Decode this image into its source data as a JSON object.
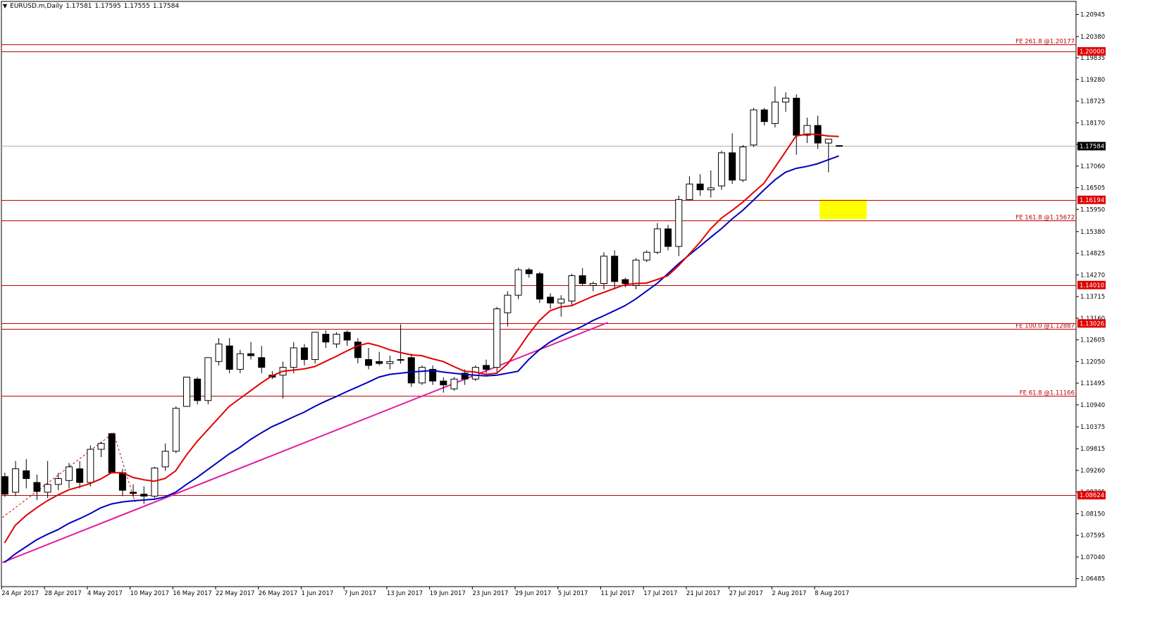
{
  "header": {
    "symbol": "EURUSD.m,Daily",
    "open": "1.17581",
    "high": "1.17595",
    "low": "1.17555",
    "close": "1.17584"
  },
  "colors": {
    "background": "#ffffff",
    "border": "#000000",
    "bull_body": "#ffffff",
    "bear_body": "#000000",
    "ma_fast": "#e00000",
    "ma_slow": "#0000c0",
    "trendline": "#e020a0",
    "level_line": "#c00000",
    "price_label_bg": "#e00000",
    "current_price_line": "#b0b0b0",
    "highlight_box": "#ffff00"
  },
  "chart_data": {
    "type": "candlestick",
    "title": "EURUSD.m,Daily",
    "ylim": [
      1.0628,
      1.2128
    ],
    "y_ticks": [
      "1.20945",
      "1.20380",
      "1.19835",
      "1.19280",
      "1.18725",
      "1.18170",
      "1.17615",
      "1.17060",
      "1.16505",
      "1.15950",
      "1.15380",
      "1.14825",
      "1.14270",
      "1.13715",
      "1.13160",
      "1.12605",
      "1.12050",
      "1.11495",
      "1.10940",
      "1.10375",
      "1.09815",
      "1.09260",
      "1.08705",
      "1.08150",
      "1.07595",
      "1.07040",
      "1.06485"
    ],
    "x_labels": [
      {
        "index": 0,
        "text": "24 Apr 2017"
      },
      {
        "index": 4,
        "text": "28 Apr 2017"
      },
      {
        "index": 8,
        "text": "4 May 2017"
      },
      {
        "index": 12,
        "text": "10 May 2017"
      },
      {
        "index": 16,
        "text": "16 May 2017"
      },
      {
        "index": 20,
        "text": "22 May 2017"
      },
      {
        "index": 24,
        "text": "26 May 2017"
      },
      {
        "index": 28,
        "text": "1 Jun 2017"
      },
      {
        "index": 32,
        "text": "7 Jun 2017"
      },
      {
        "index": 36,
        "text": "13 Jun 2017"
      },
      {
        "index": 40,
        "text": "19 Jun 2017"
      },
      {
        "index": 44,
        "text": "23 Jun 2017"
      },
      {
        "index": 48,
        "text": "29 Jun 2017"
      },
      {
        "index": 52,
        "text": "5 Jul 2017"
      },
      {
        "index": 56,
        "text": "11 Jul 2017"
      },
      {
        "index": 60,
        "text": "17 Jul 2017"
      },
      {
        "index": 64,
        "text": "21 Jul 2017"
      },
      {
        "index": 68,
        "text": "27 Jul 2017"
      },
      {
        "index": 72,
        "text": "2 Aug 2017"
      },
      {
        "index": 76,
        "text": "8 Aug 2017"
      }
    ],
    "candles": [
      {
        "o": 1.091,
        "h": 1.092,
        "l": 1.0858,
        "c": 1.0865
      },
      {
        "o": 1.087,
        "h": 1.095,
        "l": 1.086,
        "c": 1.093
      },
      {
        "o": 1.0925,
        "h": 1.0955,
        "l": 1.088,
        "c": 1.0905
      },
      {
        "o": 1.0895,
        "h": 1.0915,
        "l": 1.085,
        "c": 1.0872
      },
      {
        "o": 1.087,
        "h": 1.095,
        "l": 1.0855,
        "c": 1.089
      },
      {
        "o": 1.089,
        "h": 1.092,
        "l": 1.0875,
        "c": 1.0905
      },
      {
        "o": 1.09,
        "h": 1.0945,
        "l": 1.088,
        "c": 1.0935
      },
      {
        "o": 1.093,
        "h": 1.095,
        "l": 1.088,
        "c": 1.0895
      },
      {
        "o": 1.0895,
        "h": 1.099,
        "l": 1.0885,
        "c": 1.098
      },
      {
        "o": 1.098,
        "h": 1.1,
        "l": 1.096,
        "c": 1.0995
      },
      {
        "o": 1.102,
        "h": 1.1022,
        "l": 1.0918,
        "c": 1.092
      },
      {
        "o": 1.092,
        "h": 1.093,
        "l": 1.086,
        "c": 1.0875
      },
      {
        "o": 1.087,
        "h": 1.089,
        "l": 1.0858,
        "c": 1.0867
      },
      {
        "o": 1.0865,
        "h": 1.0885,
        "l": 1.084,
        "c": 1.086
      },
      {
        "o": 1.086,
        "h": 1.0935,
        "l": 1.0855,
        "c": 1.0932
      },
      {
        "o": 1.0935,
        "h": 1.0995,
        "l": 1.0925,
        "c": 1.0975
      },
      {
        "o": 1.0975,
        "h": 1.109,
        "l": 1.097,
        "c": 1.1085
      },
      {
        "o": 1.109,
        "h": 1.1165,
        "l": 1.109,
        "c": 1.1165
      },
      {
        "o": 1.116,
        "h": 1.1165,
        "l": 1.1095,
        "c": 1.1105
      },
      {
        "o": 1.1105,
        "h": 1.1215,
        "l": 1.1095,
        "c": 1.1215
      },
      {
        "o": 1.1205,
        "h": 1.1265,
        "l": 1.1195,
        "c": 1.125
      },
      {
        "o": 1.1245,
        "h": 1.1265,
        "l": 1.1175,
        "c": 1.1185
      },
      {
        "o": 1.1185,
        "h": 1.1235,
        "l": 1.1175,
        "c": 1.1225
      },
      {
        "o": 1.1225,
        "h": 1.1255,
        "l": 1.121,
        "c": 1.122
      },
      {
        "o": 1.1215,
        "h": 1.1245,
        "l": 1.1175,
        "c": 1.119
      },
      {
        "o": 1.117,
        "h": 1.118,
        "l": 1.116,
        "c": 1.1165
      },
      {
        "o": 1.117,
        "h": 1.1205,
        "l": 1.111,
        "c": 1.119
      },
      {
        "o": 1.119,
        "h": 1.1255,
        "l": 1.1175,
        "c": 1.124
      },
      {
        "o": 1.124,
        "h": 1.125,
        "l": 1.1195,
        "c": 1.121
      },
      {
        "o": 1.121,
        "h": 1.128,
        "l": 1.12,
        "c": 1.128
      },
      {
        "o": 1.1275,
        "h": 1.1285,
        "l": 1.124,
        "c": 1.1255
      },
      {
        "o": 1.125,
        "h": 1.128,
        "l": 1.124,
        "c": 1.1275
      },
      {
        "o": 1.128,
        "h": 1.1285,
        "l": 1.1245,
        "c": 1.126
      },
      {
        "o": 1.1255,
        "h": 1.1265,
        "l": 1.12,
        "c": 1.1215
      },
      {
        "o": 1.121,
        "h": 1.124,
        "l": 1.1185,
        "c": 1.1195
      },
      {
        "o": 1.1205,
        "h": 1.123,
        "l": 1.1195,
        "c": 1.12
      },
      {
        "o": 1.12,
        "h": 1.122,
        "l": 1.1185,
        "c": 1.1205
      },
      {
        "o": 1.121,
        "h": 1.13,
        "l": 1.12,
        "c": 1.121
      },
      {
        "o": 1.1215,
        "h": 1.1225,
        "l": 1.114,
        "c": 1.115
      },
      {
        "o": 1.115,
        "h": 1.1195,
        "l": 1.1145,
        "c": 1.119
      },
      {
        "o": 1.1185,
        "h": 1.1195,
        "l": 1.1145,
        "c": 1.1155
      },
      {
        "o": 1.1155,
        "h": 1.1165,
        "l": 1.1125,
        "c": 1.1145
      },
      {
        "o": 1.1135,
        "h": 1.1165,
        "l": 1.113,
        "c": 1.116
      },
      {
        "o": 1.1175,
        "h": 1.1185,
        "l": 1.1145,
        "c": 1.116
      },
      {
        "o": 1.116,
        "h": 1.1195,
        "l": 1.1155,
        "c": 1.119
      },
      {
        "o": 1.1195,
        "h": 1.121,
        "l": 1.1175,
        "c": 1.1185
      },
      {
        "o": 1.119,
        "h": 1.1345,
        "l": 1.1175,
        "c": 1.134
      },
      {
        "o": 1.133,
        "h": 1.1385,
        "l": 1.1295,
        "c": 1.1375
      },
      {
        "o": 1.1375,
        "h": 1.1445,
        "l": 1.1365,
        "c": 1.144
      },
      {
        "o": 1.144,
        "h": 1.1445,
        "l": 1.142,
        "c": 1.143
      },
      {
        "o": 1.143,
        "h": 1.1435,
        "l": 1.1355,
        "c": 1.1365
      },
      {
        "o": 1.137,
        "h": 1.138,
        "l": 1.134,
        "c": 1.1355
      },
      {
        "o": 1.1355,
        "h": 1.1375,
        "l": 1.132,
        "c": 1.1365
      },
      {
        "o": 1.136,
        "h": 1.143,
        "l": 1.135,
        "c": 1.1425
      },
      {
        "o": 1.1425,
        "h": 1.1445,
        "l": 1.14,
        "c": 1.1405
      },
      {
        "o": 1.14,
        "h": 1.141,
        "l": 1.1385,
        "c": 1.1405
      },
      {
        "o": 1.1405,
        "h": 1.1485,
        "l": 1.139,
        "c": 1.1475
      },
      {
        "o": 1.1475,
        "h": 1.149,
        "l": 1.139,
        "c": 1.141
      },
      {
        "o": 1.1415,
        "h": 1.142,
        "l": 1.1395,
        "c": 1.1405
      },
      {
        "o": 1.14,
        "h": 1.147,
        "l": 1.139,
        "c": 1.1465
      },
      {
        "o": 1.1465,
        "h": 1.149,
        "l": 1.146,
        "c": 1.1485
      },
      {
        "o": 1.1485,
        "h": 1.156,
        "l": 1.148,
        "c": 1.1545
      },
      {
        "o": 1.1545,
        "h": 1.1555,
        "l": 1.149,
        "c": 1.15
      },
      {
        "o": 1.15,
        "h": 1.163,
        "l": 1.1475,
        "c": 1.162
      },
      {
        "o": 1.162,
        "h": 1.168,
        "l": 1.162,
        "c": 1.166
      },
      {
        "o": 1.166,
        "h": 1.1685,
        "l": 1.163,
        "c": 1.1645
      },
      {
        "o": 1.1645,
        "h": 1.1695,
        "l": 1.1625,
        "c": 1.165
      },
      {
        "o": 1.1655,
        "h": 1.1745,
        "l": 1.1645,
        "c": 1.174
      },
      {
        "o": 1.174,
        "h": 1.179,
        "l": 1.166,
        "c": 1.167
      },
      {
        "o": 1.167,
        "h": 1.176,
        "l": 1.1665,
        "c": 1.1755
      },
      {
        "o": 1.176,
        "h": 1.1855,
        "l": 1.1755,
        "c": 1.185
      },
      {
        "o": 1.185,
        "h": 1.1855,
        "l": 1.181,
        "c": 1.182
      },
      {
        "o": 1.1815,
        "h": 1.191,
        "l": 1.1805,
        "c": 1.187
      },
      {
        "o": 1.187,
        "h": 1.1895,
        "l": 1.1845,
        "c": 1.188
      },
      {
        "o": 1.188,
        "h": 1.189,
        "l": 1.1735,
        "c": 1.1785
      },
      {
        "o": 1.1785,
        "h": 1.183,
        "l": 1.1765,
        "c": 1.181
      },
      {
        "o": 1.181,
        "h": 1.1835,
        "l": 1.175,
        "c": 1.1765
      },
      {
        "o": 1.1765,
        "h": 1.1775,
        "l": 1.169,
        "c": 1.1775
      },
      {
        "o": 1.17581,
        "h": 1.17595,
        "l": 1.17555,
        "c": 1.17584
      }
    ],
    "ma_fast": [
      1.074,
      1.0785,
      1.081,
      1.083,
      1.0848,
      1.0863,
      1.0876,
      1.0884,
      1.0892,
      1.0904,
      1.092,
      1.092,
      1.0908,
      1.0902,
      1.0898,
      1.0905,
      1.0925,
      1.0965,
      1.1,
      1.103,
      1.106,
      1.109,
      1.111,
      1.113,
      1.115,
      1.1168,
      1.118,
      1.1183,
      1.1186,
      1.1192,
      1.1205,
      1.1218,
      1.1232,
      1.1245,
      1.1252,
      1.1245,
      1.1235,
      1.1228,
      1.1222,
      1.122,
      1.1212,
      1.1205,
      1.1192,
      1.118,
      1.1178,
      1.1172,
      1.1175,
      1.1198,
      1.1235,
      1.1275,
      1.131,
      1.1335,
      1.1345,
      1.1348,
      1.136,
      1.1372,
      1.1382,
      1.1392,
      1.1402,
      1.1405,
      1.1406,
      1.1415,
      1.1425,
      1.145,
      1.148,
      1.151,
      1.1545,
      1.1572,
      1.1592,
      1.1613,
      1.1638,
      1.1662,
      1.1702,
      1.1742,
      1.1783,
      1.1788,
      1.1787,
      1.1783,
      1.1782
    ],
    "ma_slow": [
      1.069,
      1.0712,
      1.073,
      1.0748,
      1.0762,
      1.0774,
      1.079,
      1.0802,
      1.0815,
      1.083,
      1.084,
      1.0845,
      1.0848,
      1.085,
      1.0852,
      1.0858,
      1.087,
      1.089,
      1.0908,
      1.0928,
      1.0948,
      1.0968,
      1.0985,
      1.1005,
      1.1022,
      1.1038,
      1.105,
      1.1063,
      1.1075,
      1.109,
      1.1103,
      1.1115,
      1.1128,
      1.114,
      1.1152,
      1.1165,
      1.1172,
      1.1175,
      1.1178,
      1.118,
      1.1182,
      1.1178,
      1.1175,
      1.1172,
      1.117,
      1.1168,
      1.117,
      1.1175,
      1.118,
      1.121,
      1.1235,
      1.1255,
      1.127,
      1.1283,
      1.1295,
      1.131,
      1.1322,
      1.1335,
      1.1348,
      1.1365,
      1.1385,
      1.1405,
      1.143,
      1.1455,
      1.1478,
      1.15,
      1.1523,
      1.1545,
      1.157,
      1.1592,
      1.1618,
      1.1645,
      1.167,
      1.169,
      1.17,
      1.1705,
      1.1712,
      1.1722,
      1.1732
    ],
    "trendline": {
      "start": {
        "index": -0.2,
        "price": 1.069
      },
      "end": {
        "index": 56.4,
        "price": 1.1305
      }
    },
    "dotted_path": [
      {
        "index": -0.2,
        "price": 1.0805
      },
      {
        "index": 10.2,
        "price": 1.1022
      },
      {
        "index": 12.2,
        "price": 1.0845
      }
    ],
    "highlight_zone": {
      "index_from": 76.2,
      "index_to": 80.6,
      "price_top": 1.162,
      "price_bottom": 1.157
    },
    "levels": [
      {
        "price": 1.2017,
        "label": "FE 261.8 @1.20177",
        "tag": "",
        "tag_price": ""
      },
      {
        "price": 1.2,
        "label": "",
        "tag": "1.20000",
        "tag_price": "1.2000"
      },
      {
        "price": 1.16194,
        "label": "",
        "tag": "1.16194",
        "tag_price": "1.16194"
      },
      {
        "price": 1.1567,
        "label": "FE 161.8 @1.15672",
        "tag": "",
        "tag_price": ""
      },
      {
        "price": 1.1401,
        "label": "",
        "tag": "1.14010",
        "tag_price": "1.1401"
      },
      {
        "price": 1.13026,
        "label": "",
        "tag": "1.13026",
        "tag_price": "1.13026"
      },
      {
        "price": 1.1289,
        "label": "FE 100.0 @1.12887",
        "tag": "",
        "tag_price": ""
      },
      {
        "price": 1.1117,
        "label": "FE 61.8 @1.11166",
        "tag": "",
        "tag_price": ""
      },
      {
        "price": 1.08624,
        "label": "",
        "tag": "1.08624",
        "tag_price": "1.08624"
      }
    ],
    "current_price": {
      "value": 1.17584,
      "label": "1.17584"
    }
  }
}
